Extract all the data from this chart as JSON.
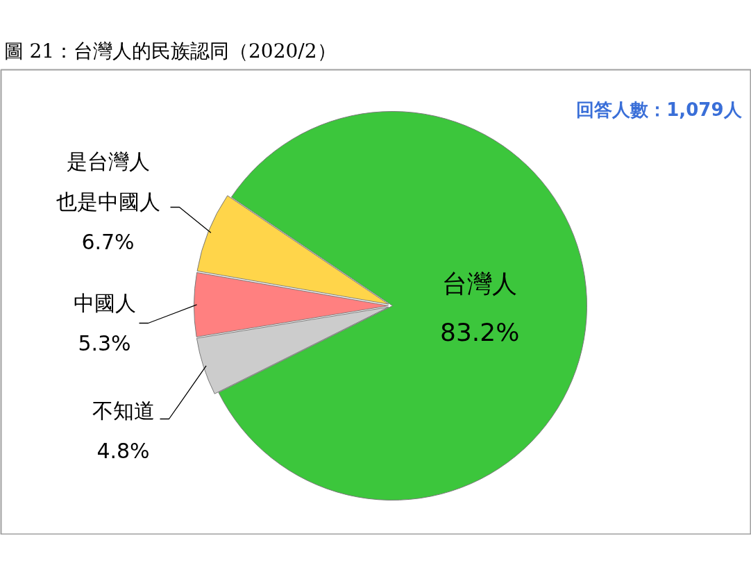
{
  "chart_data": {
    "type": "pie",
    "title": "圖 21：台灣人的民族認同（2020/2）",
    "annotations": [
      "回答人數：1,079人"
    ],
    "categories": [
      "台灣人",
      "是台灣人也是中國人",
      "中國人",
      "不知道"
    ],
    "values": [
      83.2,
      6.7,
      5.3,
      4.8
    ],
    "value_labels": [
      "83.2%",
      "6.7%",
      "5.3%",
      "4.8%"
    ],
    "colors": [
      "#3cc63c",
      "#ffd54a",
      "#ff8080",
      "#cccccc"
    ]
  }
}
